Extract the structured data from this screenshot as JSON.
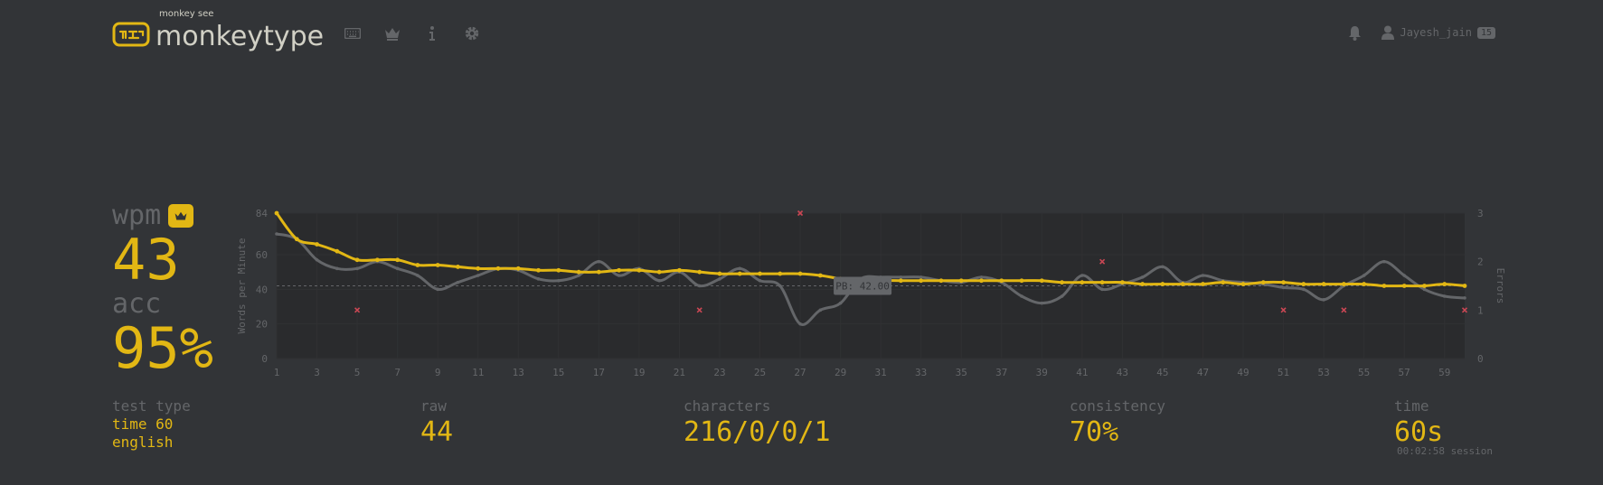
{
  "header": {
    "logo_top": "monkey see",
    "logo_text": "monkeytype",
    "logo_icon": "keyboard-logo-icon",
    "nav": [
      "keyboard-icon",
      "crown-icon",
      "info-icon",
      "gear-icon"
    ],
    "notifications_icon": "bell-icon",
    "user_icon": "user-icon",
    "username": "Jayesh_jain",
    "level": "15"
  },
  "results": {
    "wpm_label": "wpm",
    "wpm_value": "43",
    "acc_label": "acc",
    "acc_value": "95%",
    "pb_icon": "crown-icon"
  },
  "stats": {
    "test_type_label": "test type",
    "test_type_mode": "time 60",
    "test_type_language": "english",
    "raw_label": "raw",
    "raw_value": "44",
    "characters_label": "characters",
    "characters_value": "216/0/0/1",
    "consistency_label": "consistency",
    "consistency_value": "70%",
    "time_label": "time",
    "time_value": "60s",
    "session": "00:02:58 session"
  },
  "colors": {
    "background": "#323437",
    "accent": "#e2b714",
    "sub": "#646669",
    "text": "#d1d0c5",
    "error": "#ca4754"
  },
  "chart_data": {
    "type": "line",
    "ylabel": "Words per Minute",
    "y2label": "Errors",
    "ylim": [
      0,
      84
    ],
    "y_ticks": [
      0,
      20,
      40,
      60,
      84
    ],
    "y2lim": [
      0,
      3
    ],
    "y2_ticks": [
      0,
      1,
      2,
      3
    ],
    "x_ticks": [
      1,
      3,
      5,
      7,
      9,
      11,
      13,
      15,
      17,
      19,
      21,
      23,
      25,
      27,
      29,
      31,
      33,
      35,
      37,
      39,
      41,
      43,
      45,
      47,
      49,
      51,
      53,
      55,
      57,
      59
    ],
    "xlim": [
      1,
      60
    ],
    "pb_line": {
      "value": 42,
      "label": "PB: 42.00"
    },
    "grid": true,
    "series": [
      {
        "values": [
          84,
          69,
          66,
          62,
          57,
          57,
          57,
          54,
          54,
          53,
          52,
          52,
          52,
          51,
          51,
          50,
          50,
          51,
          51,
          50,
          51,
          50,
          49,
          49,
          49,
          49,
          49,
          48,
          46,
          44,
          45,
          45,
          45,
          45,
          45,
          45,
          45,
          45,
          45,
          44,
          44,
          44,
          44,
          43,
          43,
          43,
          43,
          44,
          43,
          44,
          44,
          43,
          43,
          43,
          43,
          42,
          42,
          42,
          43,
          42
        ]
      },
      {
        "values": [
          72,
          69,
          57,
          52,
          52,
          56,
          52,
          48,
          40,
          44,
          48,
          52,
          51,
          46,
          45,
          48,
          56,
          48,
          52,
          45,
          50,
          42,
          46,
          52,
          45,
          42,
          20,
          28,
          32,
          46,
          47,
          47,
          47,
          45,
          44,
          47,
          44,
          36,
          32,
          36,
          48,
          40,
          43,
          47,
          53,
          44,
          48,
          45,
          44,
          43,
          41,
          40,
          34,
          42,
          48,
          56,
          48,
          40,
          36,
          35
        ]
      }
    ],
    "errors": [
      {
        "x": 5,
        "count": 1
      },
      {
        "x": 22,
        "count": 1
      },
      {
        "x": 27,
        "count": 3
      },
      {
        "x": 42,
        "count": 2
      },
      {
        "x": 51,
        "count": 1
      },
      {
        "x": 54,
        "count": 1
      },
      {
        "x": 60,
        "count": 1
      }
    ]
  }
}
